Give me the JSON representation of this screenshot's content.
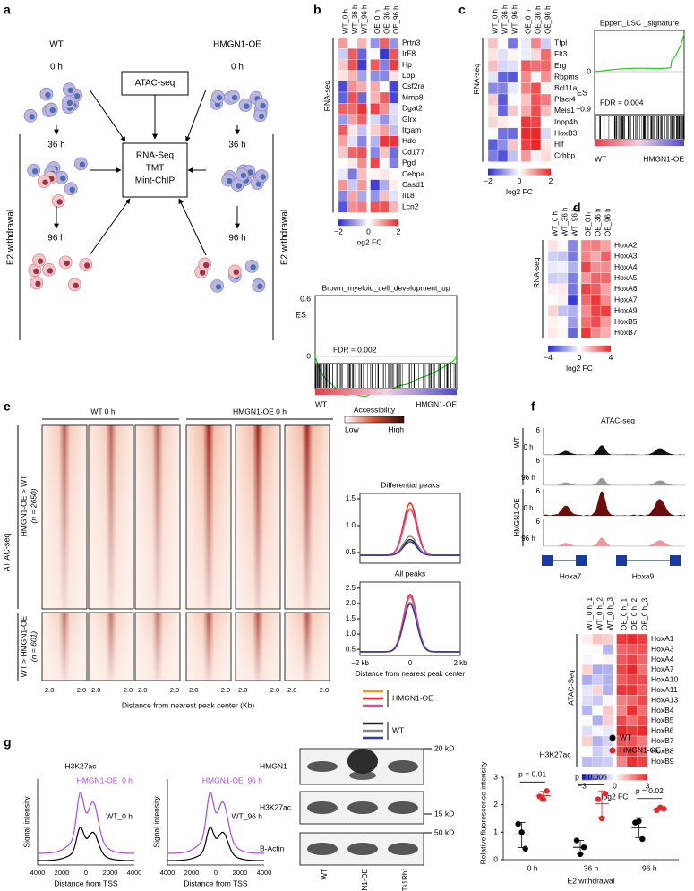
{
  "panel_a": {
    "label": "a",
    "wt": "WT",
    "oe": "HMGN1-OE",
    "t0_left": "0 h",
    "t0_right": "0 h",
    "atac": "ATAC-seq",
    "t36_left": "36 h",
    "t36_right": "36 h",
    "methods": [
      "RNA-Seq",
      "TMT",
      "Mint-ChIP"
    ],
    "t96_left": "96 h",
    "t96_right": "96 h",
    "e2_left": "E2 withdrawal",
    "e2_right": "E2 withdrawal"
  },
  "panel_b": {
    "label": "b",
    "columns": [
      "WT_0 h",
      "WT_36 h",
      "WT_96 h",
      "OE_0 h",
      "OE_36 h",
      "OE_96 h"
    ],
    "genes": [
      "Prtn3",
      "IrF8",
      "Hp",
      "Lbp",
      "Csf2ra",
      "Mmp8",
      "Dgat2",
      "Glrx",
      "Itgam",
      "Hdc",
      "Cd177",
      "Pgd",
      "Cebpa",
      "Casd1",
      "Il18",
      "Lcn2"
    ],
    "assay": "RNA-seq",
    "colorbar_ticks": [
      "−2",
      "0",
      "2"
    ],
    "colorbar_label": "log2 FC",
    "gsea": {
      "title": "Brown_myeloid_cell_development_up",
      "es_label": "ES",
      "yticks": [
        "0.6",
        "0"
      ],
      "fdr": "FDR = 0.002",
      "left": "WT",
      "right": "HMGN1-OE"
    }
  },
  "panel_c": {
    "label": "c",
    "columns": [
      "WT_0 h",
      "WT_36 h",
      "WT_96 h",
      "OE_0 h",
      "OE_36 h",
      "OE_96 h"
    ],
    "genes": [
      "Tfpl",
      "Flt3",
      "Erg",
      "Rbpms",
      "Bcl11a",
      "Plscr4",
      "Meis1",
      "Inpp4b",
      "HoxB3",
      "Hlf",
      "Crhbp"
    ],
    "assay": "RNA-seq",
    "colorbar_ticks": [
      "−2",
      "0",
      "2"
    ],
    "colorbar_label": "log2 FC",
    "gsea": {
      "title": "Eppert_LSC _signature",
      "es_label": "ES",
      "yticks": [
        "0",
        "−0.9"
      ],
      "fdr": "FDR = 0.004",
      "left": "WT",
      "right": "HMGN1-OE"
    }
  },
  "panel_d": {
    "label": "d",
    "columns": [
      "WT_0 h",
      "WT_36 h",
      "WT_96 h",
      "OE_0 h",
      "OE_36 h",
      "OE_96 h"
    ],
    "genes": [
      "HoxA2",
      "HoxA3",
      "HoxA4",
      "HoxA5",
      "HoxA6",
      "HoxA7",
      "HoxA9",
      "HoxB5",
      "HoxB7"
    ],
    "assay": "RNA-seq",
    "colorbar_ticks": [
      "−4",
      "0",
      "4"
    ],
    "colorbar_label": "log2 FC"
  },
  "panel_e": {
    "label": "e",
    "group_wt": "WT 0 h",
    "group_oe": "HMGN1-OE 0 h",
    "assay": "AT AC-seq",
    "cluster1": "HMGN1-OE > WT",
    "cluster1_n": "(n = 2650)",
    "cluster2": "WT > HMGN1-OE",
    "cluster2_n": "(n = 601)",
    "heat_xticks": [
      "−2.0",
      "2.0"
    ],
    "heat_xlabel": "Distance from nearest peak center (Kb)",
    "colorbar_title": "Accessibility",
    "colorbar_low": "Low",
    "colorbar_high": "High",
    "diff": {
      "title": "Differential peaks",
      "ylim": [
        0.3,
        1.6
      ],
      "yticks": [
        0.5,
        {
          "value": 1,
          "label": "1.0"
        },
        1.5
      ]
    },
    "all": {
      "title": "All peaks",
      "ylim": [
        0.3,
        2.7
      ],
      "yticks": [
        0.5,
        {
          "value": 1,
          "label": "1.0"
        },
        1.5,
        {
          "value": 2,
          "label": "2.0"
        },
        2.5
      ]
    },
    "profile_xticks": [
      "−2 kb",
      "0",
      "2 kb"
    ],
    "profile_xlabel": "Distance from nearest peak center",
    "legend": [
      "HMGN1-OE",
      "WT"
    ]
  },
  "panel_f": {
    "label": "f",
    "title": "ATAC-seq",
    "group_wt": "WT",
    "group_oe": "HMGN1-OE",
    "tracks": [
      {
        "time": "0 h",
        "max": "6"
      },
      {
        "time": "96 h",
        "max": "6"
      },
      {
        "time": "0 h",
        "max": "6"
      },
      {
        "time": "96 h",
        "max": "6"
      }
    ],
    "genes_model": [
      "Hoxa7",
      "Hoxa9"
    ],
    "columns": [
      "WT_0 h_1",
      "WT_0 h_2",
      "WT_0 h_3",
      "OE_0 h_1",
      "OE_0 h_2",
      "OE_0 h_3"
    ],
    "genes": [
      "HoxA1",
      "HoxA3",
      "HoxA4",
      "HoxA7",
      "HoxA10",
      "HoxA11",
      "HoxA13",
      "HoxB4",
      "HoxB5",
      "HoxB6",
      "HoxB7",
      "HoxB8",
      "HoxB9"
    ],
    "assay": "ATAC-Seq",
    "colorbar_ticks": [
      "−3",
      "0",
      "3"
    ],
    "colorbar_label": "log2 FC"
  },
  "panel_g": {
    "label": "g",
    "title": "H3K27ac",
    "profiles": [
      {
        "oe": "HMGN1-OE_0 h",
        "wt": "WT_0 h"
      },
      {
        "oe": "HMGN1-OE_96 h",
        "wt": "WT_96 h"
      }
    ],
    "profile_ylabel": "Signal intensity",
    "profile_xticks": [
      "4000",
      "2000",
      "0",
      "2000",
      "4000"
    ],
    "profile_xlabel": "Distance from TSS",
    "blot_rows": [
      "HMGN1",
      "H3K27ac",
      "B-Actin"
    ],
    "blot_markers": [
      "20 kD",
      "15 kD",
      "50 kD"
    ],
    "blot_lanes": [
      "WT",
      "HMGN1-OE",
      "Ts1Rhr"
    ],
    "dots": {
      "title": "H3K27ac",
      "ylabel": "Relative fluorescence intensity",
      "xlabel": "E2 withdrawal",
      "categories": [
        "0 h",
        "36 h",
        "96 h"
      ],
      "ylim": [
        0,
        3
      ],
      "yticks": [
        0,
        1,
        2,
        3
      ],
      "series": [
        {
          "name": "WT",
          "color": "#000000",
          "values": [
            [
              1.3,
              1.0,
              0.4
            ],
            [
              0.7,
              0.2,
              0.45
            ],
            [
              1.35,
              1.4,
              0.75
            ]
          ]
        },
        {
          "name": "HMGN1-OE",
          "color": "#e8262a",
          "values": [
            [
              2.3,
              2.2,
              2.5
            ],
            [
              2.2,
              1.5,
              2.4
            ],
            [
              1.8,
              1.9,
              1.85
            ]
          ]
        }
      ],
      "pvalues": [
        "p = 0.01",
        "p = 0.006",
        "p = 0.02"
      ]
    }
  }
}
